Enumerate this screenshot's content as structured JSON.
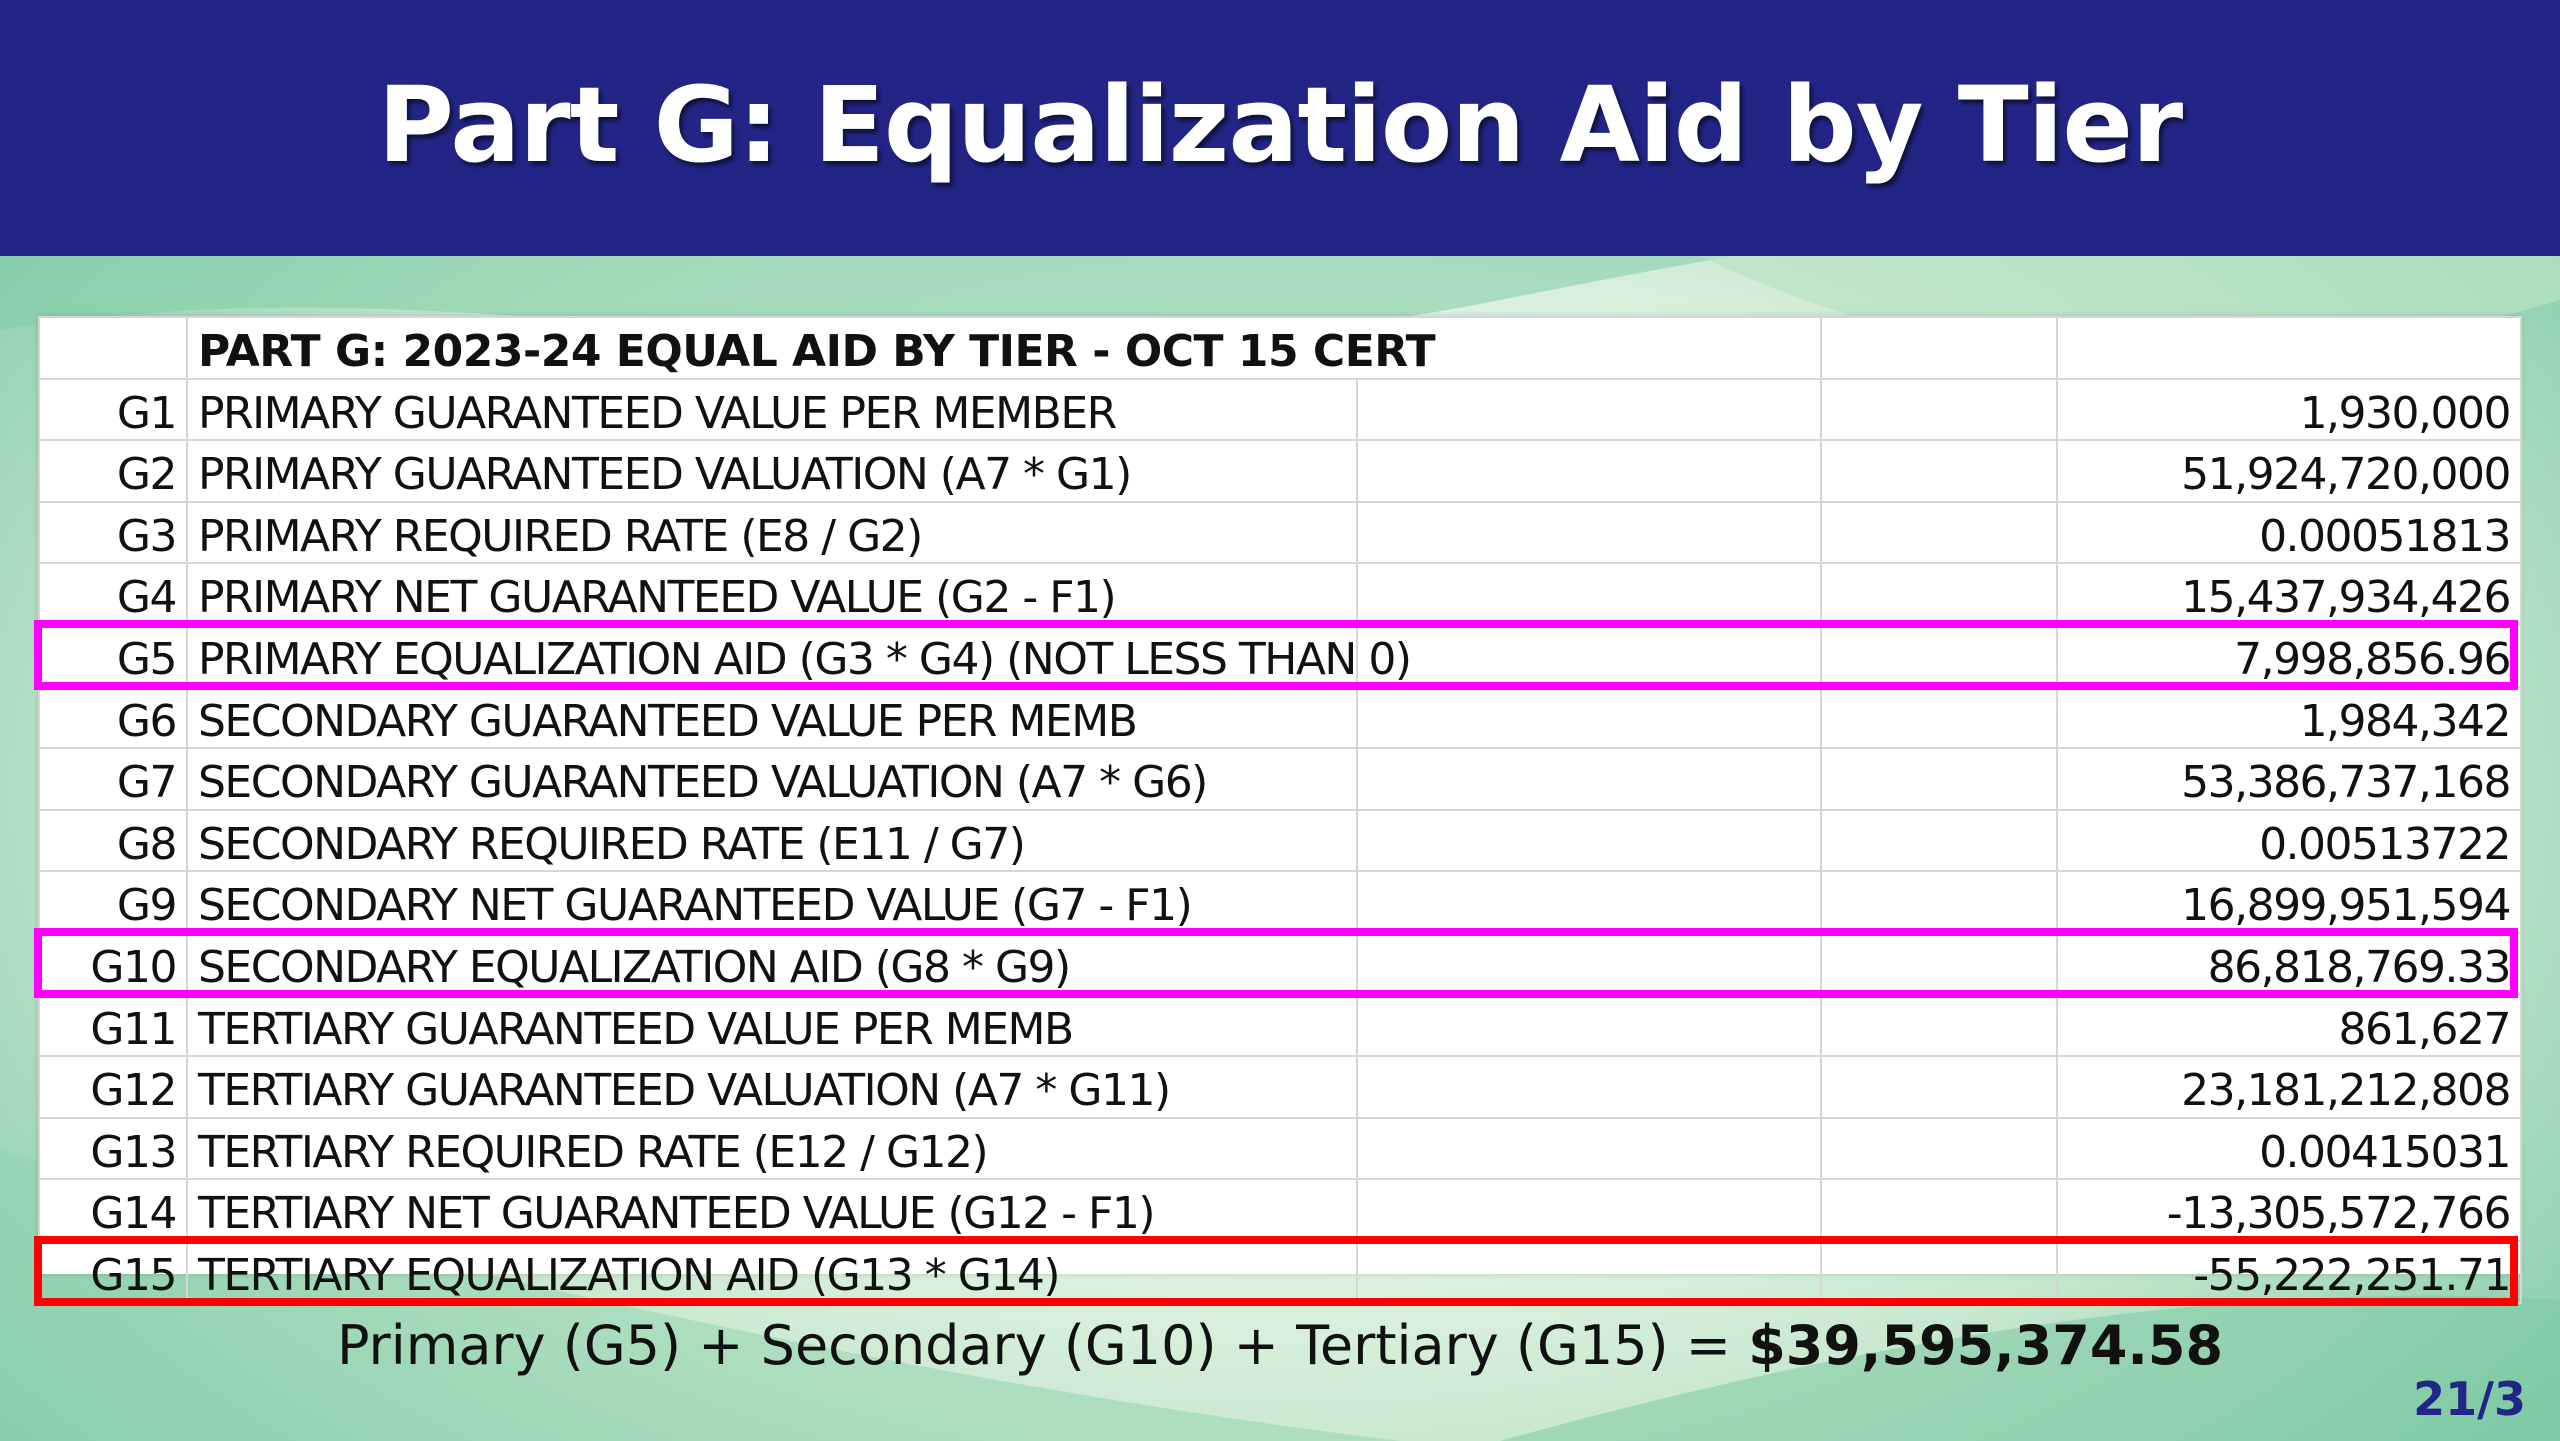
{
  "title": "Part G: Equalization Aid by Tier",
  "table": {
    "header": "PART G: 2023-24 EQUAL AID BY TIER - OCT 15 CERT",
    "rows": [
      {
        "code": "G1",
        "label": "PRIMARY GUARANTEED VALUE PER MEMBER",
        "value": "1,930,000"
      },
      {
        "code": "G2",
        "label": "PRIMARY GUARANTEED VALUATION (A7 * G1)",
        "value": "51,924,720,000"
      },
      {
        "code": "G3",
        "label": "PRIMARY REQUIRED RATE (E8 / G2)",
        "value": "0.00051813"
      },
      {
        "code": "G4",
        "label": "PRIMARY NET GUARANTEED VALUE (G2 - F1)",
        "value": "15,437,934,426"
      },
      {
        "code": "G5",
        "label": "PRIMARY EQUALIZATION AID (G3 * G4) (NOT LESS THAN 0)",
        "value": "7,998,856.96"
      },
      {
        "code": "G6",
        "label": "SECONDARY GUARANTEED VALUE PER MEMB",
        "value": "1,984,342"
      },
      {
        "code": "G7",
        "label": "SECONDARY GUARANTEED VALUATION (A7 * G6)",
        "value": "53,386,737,168"
      },
      {
        "code": "G8",
        "label": "SECONDARY REQUIRED RATE (E11 / G7)",
        "value": "0.00513722"
      },
      {
        "code": "G9",
        "label": "SECONDARY NET GUARANTEED VALUE (G7 - F1)",
        "value": "16,899,951,594"
      },
      {
        "code": "G10",
        "label": "SECONDARY EQUALIZATION AID (G8 * G9)",
        "value": "86,818,769.33"
      },
      {
        "code": "G11",
        "label": "TERTIARY GUARANTEED VALUE PER MEMB",
        "value": "861,627"
      },
      {
        "code": "G12",
        "label": "TERTIARY GUARANTEED VALUATION (A7 * G11)",
        "value": "23,181,212,808"
      },
      {
        "code": "G13",
        "label": "TERTIARY REQUIRED RATE (E12 / G12)",
        "value": "0.00415031"
      },
      {
        "code": "G14",
        "label": "TERTIARY NET GUARANTEED VALUE (G12 - F1)",
        "value": "-13,305,572,766"
      },
      {
        "code": "G15",
        "label": "TERTIARY EQUALIZATION AID (G13 * G14)",
        "value": "-55,222,251.71"
      }
    ]
  },
  "highlights": [
    {
      "row": "G5",
      "color": "#ff00ff"
    },
    {
      "row": "G10",
      "color": "#ff00ff"
    },
    {
      "row": "G15",
      "color": "#ff0000"
    }
  ],
  "formula": {
    "text": "Primary (G5) + Secondary (G10) + Tertiary (G15) = ",
    "total": "$39,595,374.58"
  },
  "slide_number": "21/3",
  "colors": {
    "title_bar": "#222586",
    "highlight_magenta": "#ff00ff",
    "highlight_red": "#ff0000"
  }
}
